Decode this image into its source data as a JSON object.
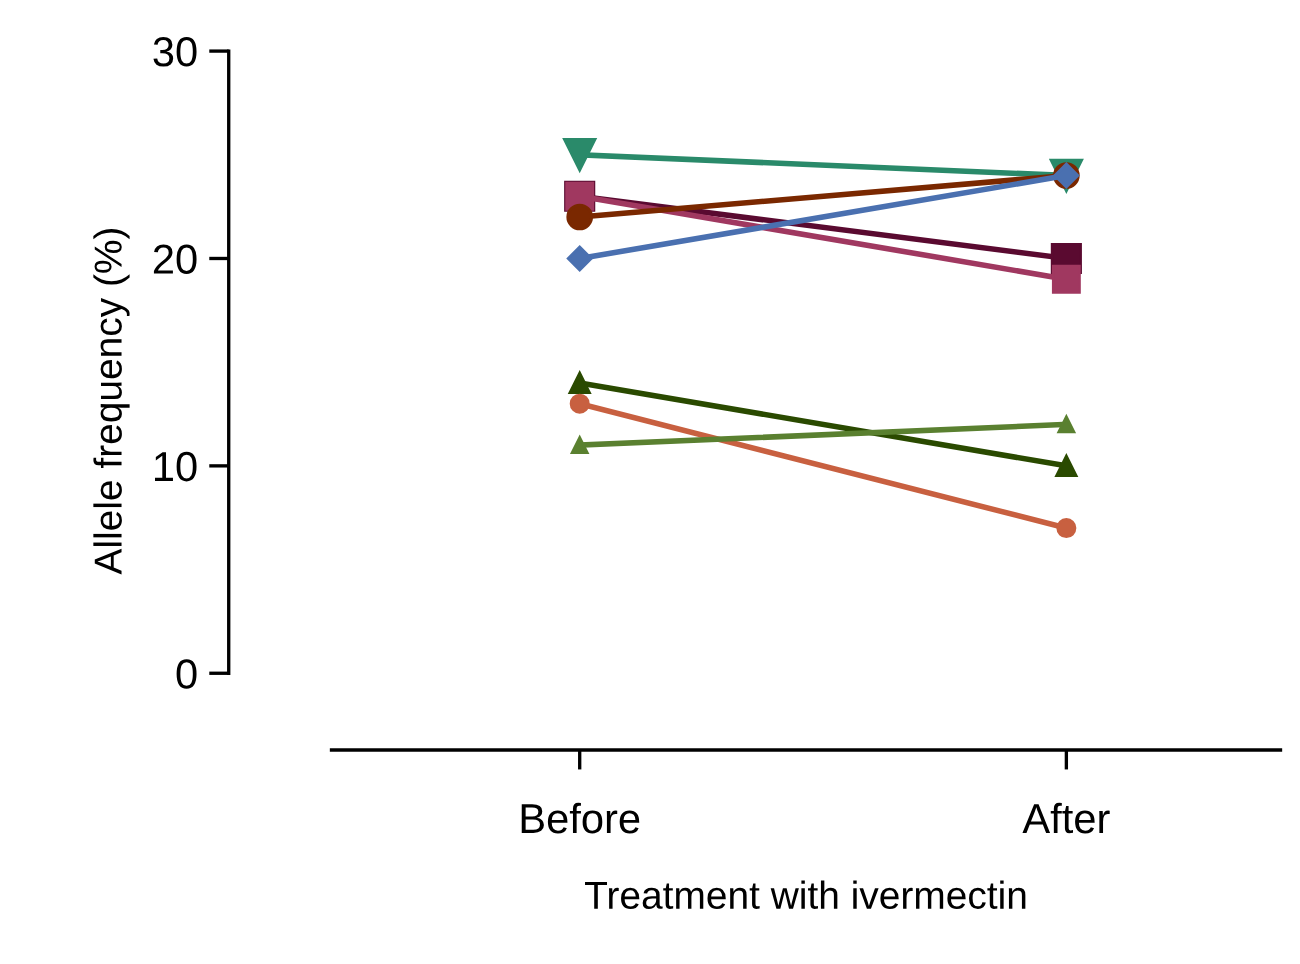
{
  "chart_data": {
    "type": "line",
    "xlabel": "Treatment with ivermectin",
    "ylabel": "Allele frequency (%)",
    "categories": [
      "Before",
      "After"
    ],
    "ylim": [
      -3.7,
      30
    ],
    "yticks": [
      0,
      10,
      20,
      30
    ],
    "grid": false,
    "legend": false,
    "line_style": "solid",
    "series": [
      {
        "color": "#2a8a6a",
        "marker": "triangle_down",
        "values": [
          25,
          24
        ]
      },
      {
        "color": "#5a0a30",
        "marker": "square",
        "values": [
          23,
          20
        ]
      },
      {
        "color": "#a03860",
        "marker": "square",
        "values": [
          23,
          19
        ]
      },
      {
        "color": "#7a2800",
        "marker": "circle",
        "values": [
          22,
          24
        ]
      },
      {
        "color": "#4a70b0",
        "marker": "diamond",
        "values": [
          20,
          24
        ]
      },
      {
        "color": "#2a4a00",
        "marker": "triangle",
        "values": [
          14,
          10
        ]
      },
      {
        "color": "#c86040",
        "marker": "circle",
        "values": [
          13,
          7
        ]
      },
      {
        "color": "#5a8030",
        "marker": "triangle",
        "values": [
          11,
          12
        ]
      }
    ]
  }
}
